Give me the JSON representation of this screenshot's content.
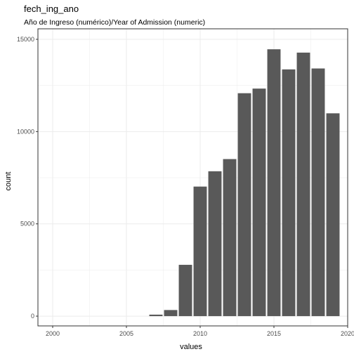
{
  "chart_data": {
    "type": "bar",
    "title": "fech_ing_ano",
    "subtitle": "Año de Ingreso (numérico)/Year of Admission (numeric)",
    "xlabel": "values",
    "ylabel": "count",
    "x": [
      2007,
      2008,
      2009,
      2010,
      2011,
      2012,
      2013,
      2014,
      2015,
      2016,
      2017,
      2018,
      2019
    ],
    "values": [
      80,
      330,
      2780,
      7020,
      7850,
      8510,
      12080,
      12330,
      14460,
      13370,
      14280,
      13420,
      10990
    ],
    "xlim": [
      1999,
      2020
    ],
    "ylim": [
      0,
      15000
    ],
    "xticks": [
      "2000",
      "2005",
      "2010",
      "2015",
      "2020"
    ],
    "yticks": [
      "0",
      "5000",
      "10000",
      "15000"
    ],
    "grid": true,
    "legend": "none",
    "colors": {
      "bar": "#595959",
      "grid": "#ebebeb",
      "panel_border": "#333333"
    }
  }
}
